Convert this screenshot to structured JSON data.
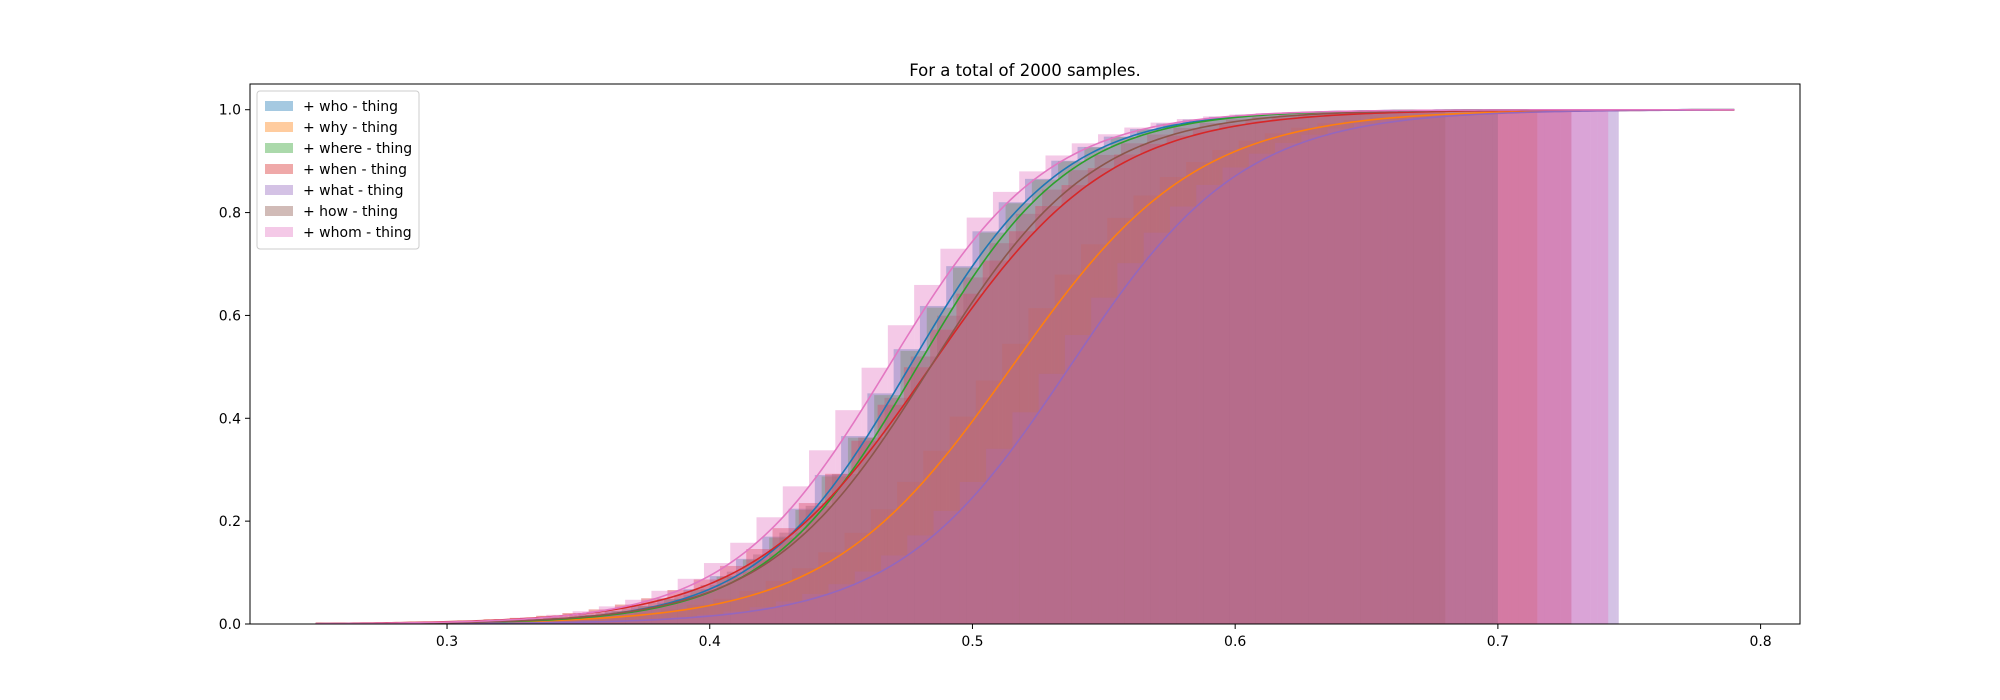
{
  "chart_data": {
    "type": "area",
    "title": "For a total of 2000 samples.",
    "xlabel": "",
    "ylabel": "",
    "xlim": [
      0.225,
      0.815
    ],
    "ylim": [
      0.0,
      1.05
    ],
    "x_ticks": [
      "0.3",
      "0.4",
      "0.5",
      "0.6",
      "0.7",
      "0.8"
    ],
    "y_ticks": [
      "0.0",
      "0.2",
      "0.4",
      "0.6",
      "0.8",
      "1.0"
    ],
    "grid": false,
    "legend_position": "upper-left",
    "histogram_bin_width": 0.01,
    "series": [
      {
        "name": "+ who - thing",
        "color": "#1f77b4",
        "cdf_center": 0.476,
        "cdf_scale": 0.029,
        "hist_end": 0.7
      },
      {
        "name": "+ why - thing",
        "color": "#ff7f0e",
        "cdf_center": 0.515,
        "cdf_scale": 0.035,
        "hist_end": 0.715
      },
      {
        "name": "+ where - thing",
        "color": "#2ca02c",
        "cdf_center": 0.479,
        "cdf_scale": 0.029,
        "hist_end": 0.7
      },
      {
        "name": "+ when - thing",
        "color": "#d62728",
        "cdf_center": 0.484,
        "cdf_scale": 0.034,
        "hist_end": 0.728
      },
      {
        "name": "+ what - thing",
        "color": "#9467bd",
        "cdf_center": 0.537,
        "cdf_scale": 0.033,
        "hist_end": 0.746
      },
      {
        "name": "+ how - thing",
        "color": "#8c564b",
        "cdf_center": 0.484,
        "cdf_scale": 0.031,
        "hist_end": 0.68
      },
      {
        "name": "+ whom - thing",
        "color": "#e377c2",
        "cdf_center": 0.468,
        "cdf_scale": 0.03,
        "hist_end": 0.742
      }
    ],
    "fit_x_range": [
      0.25,
      0.79
    ]
  }
}
